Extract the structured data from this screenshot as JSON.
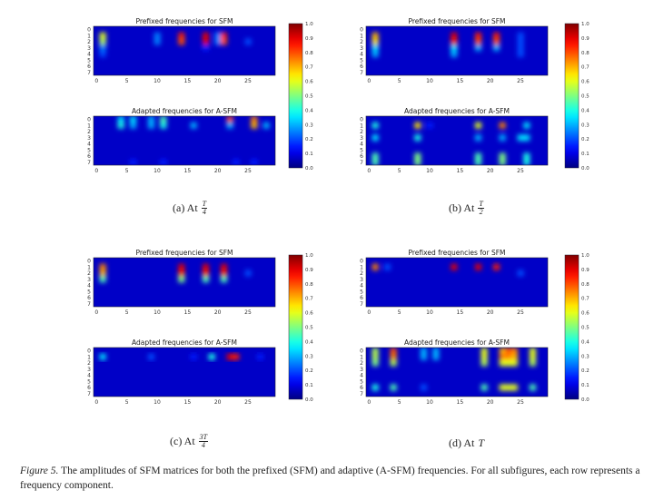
{
  "figure": {
    "caption_label": "Figure 5.",
    "caption_text": " The amplitudes of SFM matrices for both the prefixed (SFM) and adaptive (A-SFM) frequencies. For all subfigures, each row represents a frequency component."
  },
  "chart_data": [
    {
      "type": "heatmap",
      "subcaption": {
        "label": "(a) At",
        "num": "T",
        "den": "4",
        "plain": ""
      },
      "colormap": "jet",
      "colorbar": {
        "range": [
          0.0,
          1.0
        ],
        "ticks": [
          "0.0",
          "0.1",
          "0.2",
          "0.3",
          "0.4",
          "0.5",
          "0.6",
          "0.7",
          "0.8",
          "0.9",
          "1.0"
        ]
      },
      "panels": [
        {
          "title": "Prefixed frequencies for SFM",
          "rows": 8,
          "cols": 30,
          "yticks": [
            "0",
            "1",
            "2",
            "3",
            "4",
            "5",
            "6",
            "7"
          ],
          "xticks": [
            "0",
            "5",
            "10",
            "15",
            "20",
            "25"
          ],
          "background": 0.07,
          "cells": [
            [
              1,
              1,
              0.6
            ],
            [
              2,
              1,
              0.55
            ],
            [
              3,
              1,
              0.25
            ],
            [
              4,
              1,
              0.2
            ],
            [
              1,
              10,
              0.25
            ],
            [
              2,
              10,
              0.25
            ],
            [
              1,
              14,
              0.85
            ],
            [
              2,
              14,
              0.8
            ],
            [
              1,
              18,
              0.9
            ],
            [
              2,
              18,
              0.9
            ],
            [
              3,
              18,
              0.15
            ],
            [
              1,
              20,
              0.25
            ],
            [
              2,
              20,
              0.25
            ],
            [
              1,
              21,
              0.85
            ],
            [
              2,
              21,
              0.8
            ],
            [
              2,
              25,
              0.2
            ]
          ]
        },
        {
          "title": "Adapted frequencies for A-SFM",
          "rows": 8,
          "cols": 30,
          "yticks": [
            "0",
            "1",
            "2",
            "3",
            "4",
            "5",
            "6",
            "7"
          ],
          "xticks": [
            "0",
            "5",
            "10",
            "15",
            "20",
            "25"
          ],
          "background": 0.07,
          "cells": [
            [
              0,
              4,
              0.35
            ],
            [
              1,
              4,
              0.4
            ],
            [
              0,
              6,
              0.35
            ],
            [
              1,
              6,
              0.3
            ],
            [
              0,
              9,
              0.3
            ],
            [
              1,
              9,
              0.3
            ],
            [
              0,
              11,
              0.45
            ],
            [
              1,
              11,
              0.4
            ],
            [
              1,
              16,
              0.3
            ],
            [
              0,
              22,
              0.8
            ],
            [
              1,
              22,
              0.3
            ],
            [
              0,
              26,
              0.75
            ],
            [
              1,
              26,
              0.7
            ],
            [
              1,
              28,
              0.3
            ],
            [
              7,
              6,
              0.15
            ],
            [
              7,
              11,
              0.15
            ],
            [
              7,
              23,
              0.15
            ],
            [
              7,
              26,
              0.15
            ]
          ]
        }
      ]
    },
    {
      "type": "heatmap",
      "subcaption": {
        "label": "(b) At",
        "num": "T",
        "den": "2",
        "plain": ""
      },
      "colormap": "jet",
      "colorbar": {
        "range": [
          0.0,
          1.0
        ],
        "ticks": [
          "0.0",
          "0.1",
          "0.2",
          "0.3",
          "0.4",
          "0.5",
          "0.6",
          "0.7",
          "0.8",
          "0.9",
          "1.0"
        ]
      },
      "panels": [
        {
          "title": "Prefixed frequencies for SFM",
          "rows": 8,
          "cols": 30,
          "yticks": [
            "0",
            "1",
            "2",
            "3",
            "4",
            "5",
            "6",
            "7"
          ],
          "xticks": [
            "0",
            "5",
            "10",
            "15",
            "20",
            "25"
          ],
          "background": 0.07,
          "cells": [
            [
              1,
              1,
              0.7
            ],
            [
              2,
              1,
              0.65
            ],
            [
              3,
              1,
              0.35
            ],
            [
              4,
              1,
              0.3
            ],
            [
              1,
              14,
              0.9
            ],
            [
              2,
              14,
              0.85
            ],
            [
              3,
              14,
              0.35
            ],
            [
              4,
              14,
              0.3
            ],
            [
              1,
              18,
              0.85
            ],
            [
              2,
              18,
              0.8
            ],
            [
              3,
              18,
              0.3
            ],
            [
              1,
              21,
              0.85
            ],
            [
              2,
              21,
              0.8
            ],
            [
              3,
              21,
              0.3
            ],
            [
              1,
              25,
              0.2
            ],
            [
              2,
              25,
              0.2
            ],
            [
              3,
              25,
              0.2
            ],
            [
              4,
              25,
              0.2
            ]
          ]
        },
        {
          "title": "Adapted frequencies for A-SFM",
          "rows": 8,
          "cols": 30,
          "yticks": [
            "0",
            "1",
            "2",
            "3",
            "4",
            "5",
            "6",
            "7"
          ],
          "xticks": [
            "0",
            "5",
            "10",
            "15",
            "20",
            "25"
          ],
          "background": 0.07,
          "cells": [
            [
              1,
              1,
              0.4
            ],
            [
              1,
              8,
              0.65
            ],
            [
              1,
              10,
              0.15
            ],
            [
              1,
              18,
              0.6
            ],
            [
              1,
              22,
              0.75
            ],
            [
              1,
              26,
              0.35
            ],
            [
              3,
              1,
              0.35
            ],
            [
              3,
              8,
              0.4
            ],
            [
              3,
              18,
              0.3
            ],
            [
              3,
              22,
              0.3
            ],
            [
              3,
              25,
              0.35
            ],
            [
              3,
              26,
              0.35
            ],
            [
              6,
              1,
              0.45
            ],
            [
              7,
              1,
              0.45
            ],
            [
              6,
              8,
              0.5
            ],
            [
              7,
              8,
              0.5
            ],
            [
              6,
              18,
              0.45
            ],
            [
              7,
              18,
              0.45
            ],
            [
              6,
              22,
              0.5
            ],
            [
              7,
              22,
              0.5
            ],
            [
              6,
              26,
              0.4
            ],
            [
              7,
              26,
              0.4
            ]
          ]
        }
      ]
    },
    {
      "type": "heatmap",
      "subcaption": {
        "label": "(c) At",
        "num": "3T",
        "den": "4",
        "plain": ""
      },
      "colormap": "jet",
      "colorbar": {
        "range": [
          0.0,
          1.0
        ],
        "ticks": [
          "0.0",
          "0.1",
          "0.2",
          "0.3",
          "0.4",
          "0.5",
          "0.6",
          "0.7",
          "0.8",
          "0.9",
          "1.0"
        ]
      },
      "panels": [
        {
          "title": "Prefixed frequencies for SFM",
          "rows": 8,
          "cols": 30,
          "yticks": [
            "0",
            "1",
            "2",
            "3",
            "4",
            "5",
            "6",
            "7"
          ],
          "xticks": [
            "0",
            "5",
            "10",
            "15",
            "20",
            "25"
          ],
          "background": 0.07,
          "cells": [
            [
              1,
              1,
              0.75
            ],
            [
              2,
              1,
              0.7
            ],
            [
              3,
              1,
              0.45
            ],
            [
              1,
              14,
              0.9
            ],
            [
              2,
              14,
              0.85
            ],
            [
              3,
              14,
              0.5
            ],
            [
              1,
              18,
              0.9
            ],
            [
              2,
              18,
              0.85
            ],
            [
              3,
              18,
              0.45
            ],
            [
              1,
              21,
              0.9
            ],
            [
              2,
              21,
              0.85
            ],
            [
              3,
              21,
              0.45
            ],
            [
              2,
              25,
              0.2
            ]
          ]
        },
        {
          "title": "Adapted frequencies for A-SFM",
          "rows": 8,
          "cols": 30,
          "yticks": [
            "0",
            "1",
            "2",
            "3",
            "4",
            "5",
            "6",
            "7"
          ],
          "xticks": [
            "0",
            "5",
            "10",
            "15",
            "20",
            "25"
          ],
          "background": 0.07,
          "cells": [
            [
              1,
              1,
              0.35
            ],
            [
              1,
              9,
              0.2
            ],
            [
              1,
              16,
              0.15
            ],
            [
              1,
              19,
              0.4
            ],
            [
              1,
              22,
              0.9
            ],
            [
              1,
              23,
              0.85
            ],
            [
              1,
              27,
              0.15
            ]
          ]
        }
      ]
    },
    {
      "type": "heatmap",
      "subcaption": {
        "label": "(d) At",
        "num": "",
        "den": "",
        "plain": "T"
      },
      "colormap": "jet",
      "colorbar": {
        "range": [
          0.0,
          1.0
        ],
        "ticks": [
          "0.0",
          "0.1",
          "0.2",
          "0.3",
          "0.4",
          "0.5",
          "0.6",
          "0.7",
          "0.8",
          "0.9",
          "1.0"
        ]
      },
      "panels": [
        {
          "title": "Prefixed frequencies for SFM",
          "rows": 8,
          "cols": 30,
          "yticks": [
            "0",
            "1",
            "2",
            "3",
            "4",
            "5",
            "6",
            "7"
          ],
          "xticks": [
            "0",
            "5",
            "10",
            "15",
            "20",
            "25"
          ],
          "background": 0.07,
          "cells": [
            [
              1,
              1,
              0.75
            ],
            [
              1,
              3,
              0.2
            ],
            [
              1,
              14,
              0.9
            ],
            [
              1,
              18,
              0.9
            ],
            [
              1,
              21,
              0.85
            ],
            [
              2,
              25,
              0.2
            ]
          ]
        },
        {
          "title": "Adapted frequencies for A-SFM",
          "rows": 8,
          "cols": 30,
          "yticks": [
            "0",
            "1",
            "2",
            "3",
            "4",
            "5",
            "6",
            "7"
          ],
          "xticks": [
            "0",
            "5",
            "10",
            "15",
            "20",
            "25"
          ],
          "background": 0.07,
          "cells": [
            [
              0,
              1,
              0.55
            ],
            [
              1,
              1,
              0.55
            ],
            [
              2,
              1,
              0.5
            ],
            [
              0,
              4,
              0.8
            ],
            [
              1,
              4,
              0.75
            ],
            [
              2,
              4,
              0.55
            ],
            [
              0,
              9,
              0.3
            ],
            [
              1,
              9,
              0.3
            ],
            [
              0,
              11,
              0.3
            ],
            [
              1,
              11,
              0.3
            ],
            [
              0,
              19,
              0.6
            ],
            [
              1,
              19,
              0.6
            ],
            [
              2,
              19,
              0.55
            ],
            [
              0,
              22,
              0.7
            ],
            [
              1,
              22,
              0.75
            ],
            [
              2,
              22,
              0.6
            ],
            [
              0,
              23,
              0.8
            ],
            [
              1,
              23,
              0.75
            ],
            [
              2,
              23,
              0.6
            ],
            [
              0,
              24,
              0.75
            ],
            [
              1,
              24,
              0.7
            ],
            [
              2,
              24,
              0.6
            ],
            [
              0,
              27,
              0.6
            ],
            [
              1,
              27,
              0.6
            ],
            [
              2,
              27,
              0.55
            ],
            [
              6,
              1,
              0.4
            ],
            [
              6,
              4,
              0.45
            ],
            [
              6,
              9,
              0.2
            ],
            [
              6,
              19,
              0.45
            ],
            [
              6,
              22,
              0.6
            ],
            [
              6,
              23,
              0.6
            ],
            [
              6,
              24,
              0.6
            ],
            [
              6,
              27,
              0.45
            ]
          ]
        }
      ]
    }
  ]
}
